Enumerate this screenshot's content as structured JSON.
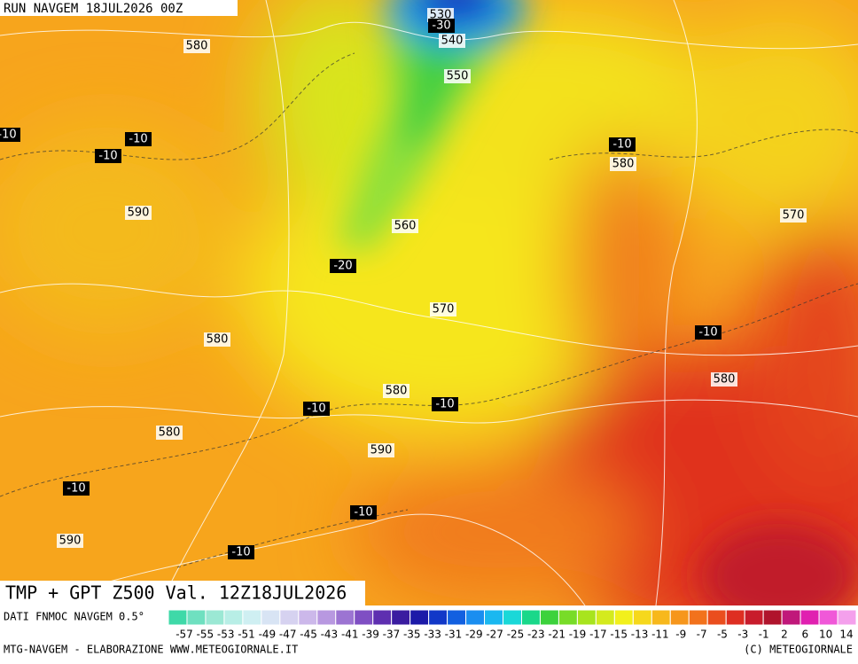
{
  "header": {
    "run": "RUN NAVGEM 18JUL2026 00Z"
  },
  "map": {
    "gpt_labels": [
      580,
      590,
      530,
      540,
      550,
      580,
      570,
      560,
      570,
      580,
      580,
      580,
      580,
      590,
      590
    ],
    "tmp_labels": [
      -10,
      -10,
      -10,
      -30,
      -10,
      -20,
      -10,
      -10,
      -10,
      -10,
      -10,
      -10
    ]
  },
  "footer": {
    "title": "TMP + GPT Z500 Val. 12Z18JUL2026",
    "source": "DATI FNMOC NAVGEM 0.5°",
    "scale": [
      -57,
      -55,
      -53,
      -51,
      -49,
      -47,
      -45,
      -43,
      -41,
      -39,
      -37,
      -35,
      -33,
      -31,
      -29,
      -27,
      -25,
      -23,
      -21,
      -19,
      -17,
      -15,
      -13,
      -11,
      -9,
      -7,
      -5,
      -3,
      -1,
      2,
      6,
      10,
      14
    ],
    "credit": "MTG-NAVGEM - ELABORAZIONE WWW.METEOGIORNALE.IT",
    "copyright": "(C) METEOGIORNALE"
  }
}
